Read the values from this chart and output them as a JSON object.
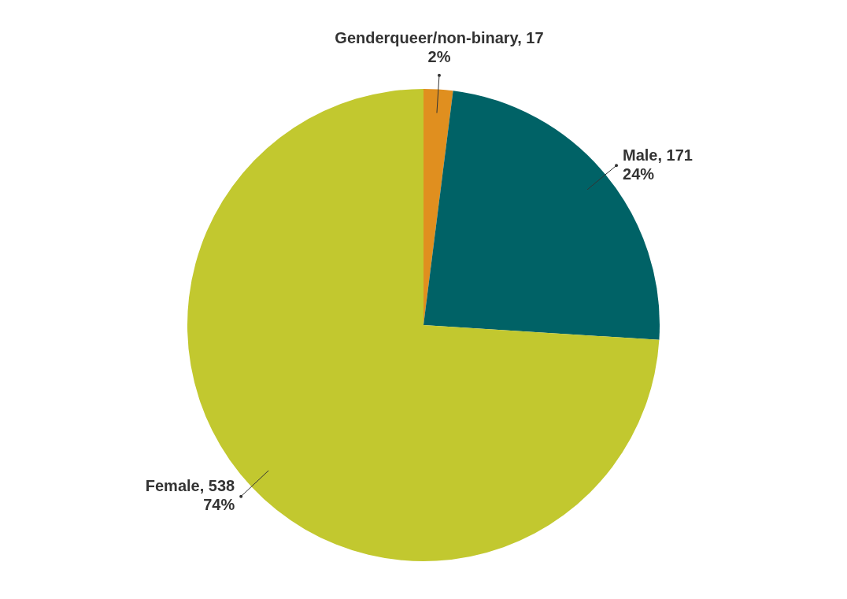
{
  "chart_data": {
    "type": "pie",
    "categories": [
      "Genderqueer/non-binary, 17",
      "Male, 171",
      "Female, 538"
    ],
    "values": [
      2,
      24,
      74
    ],
    "colors": [
      "#e08f1f",
      "#006266",
      "#c2c82f"
    ],
    "value_labels": [
      "2%",
      "24%",
      "74%"
    ]
  }
}
